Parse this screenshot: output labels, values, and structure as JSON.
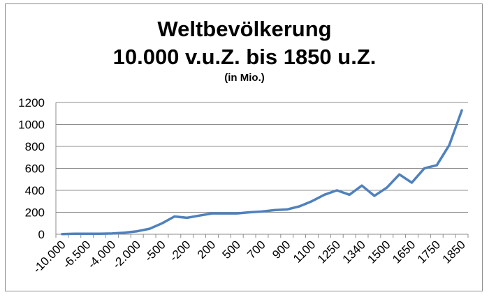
{
  "chart_data": {
    "type": "line",
    "title": "Weltbevölkerung",
    "subtitle": "10.000 v.u.Z. bis 1850 u.Z.",
    "unit_note": "(in Mio.)",
    "xlabel": "",
    "ylabel": "",
    "ylim": [
      0,
      1200
    ],
    "yticks": [
      0,
      200,
      400,
      600,
      800,
      1000,
      1200
    ],
    "x_tick_labels": [
      "-10.000",
      "-6.500",
      "-4.000",
      "-2.000",
      "-500",
      "-200",
      "200",
      "500",
      "700",
      "900",
      "1100",
      "1250",
      "1340",
      "1500",
      "1650",
      "1750",
      "1850"
    ],
    "grid": true,
    "legend": "none",
    "line_color": "#4f81bd",
    "series": [
      {
        "x": [
          "-10.000",
          "-8.000",
          "-6.500",
          "-5.000",
          "-4.000",
          "-3.000",
          "-2.000",
          "-1.000",
          "-500",
          "-400",
          "-200",
          "1",
          "200",
          "400",
          "500",
          "600",
          "700",
          "800",
          "900",
          "1000",
          "1100",
          "1200",
          "1250",
          "1300",
          "1340",
          "1400",
          "1500",
          "1600",
          "1650",
          "1700",
          "1750",
          "1800",
          "1850"
        ],
        "values": [
          2,
          5,
          5,
          5,
          7,
          14,
          27,
          50,
          100,
          162,
          150,
          170,
          190,
          190,
          190,
          200,
          207,
          220,
          226,
          254,
          301,
          360,
          400,
          360,
          443,
          350,
          425,
          545,
          470,
          600,
          629,
          813,
          1128
        ]
      }
    ]
  }
}
